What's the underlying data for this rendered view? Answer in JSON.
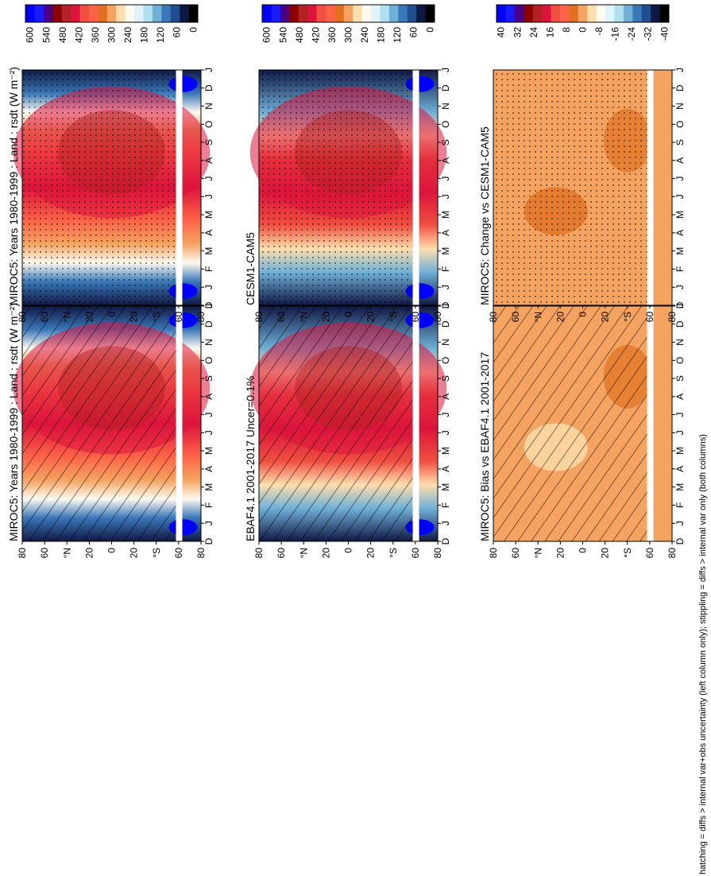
{
  "footnote": "hatching = diffs > internal var+obs uncertainty (left column only); stippling = diffs > internal var only (both columns)",
  "x_tick_labels": [
    "J",
    "F",
    "M",
    "A",
    "M",
    "J",
    "J",
    "A",
    "S",
    "O",
    "N",
    "D",
    "J"
  ],
  "x_tick_labels_left": [
    "D",
    "J",
    "F",
    "M",
    "A",
    "M",
    "J",
    "J",
    "A",
    "S",
    "O",
    "N",
    "D",
    "J"
  ],
  "lat_tick_labels": [
    "80",
    "60",
    "°N",
    "20",
    "0",
    "20",
    "°S",
    "60",
    "80"
  ],
  "colorbars": {
    "absolute": {
      "labels": [
        "600",
        "540",
        "480",
        "420",
        "360",
        "300",
        "240",
        "180",
        "120",
        "60",
        "0"
      ],
      "colors": [
        "#0000ff",
        "#1a1aff",
        "#4b0082",
        "#8b0000",
        "#b22222",
        "#dc143c",
        "#f05040",
        "#ff6347",
        "#e07020",
        "#f4a460",
        "#ffdead",
        "#fffaf0",
        "#e0f4ff",
        "#b0e0f0",
        "#6fb0d8",
        "#3a78b8",
        "#1f4f8f",
        "#101844",
        "#000000"
      ]
    },
    "difference": {
      "labels": [
        "40",
        "32",
        "24",
        "16",
        "8",
        "0",
        "-8",
        "-16",
        "-24",
        "-32",
        "-40"
      ],
      "colors": [
        "#0000ff",
        "#1a1aff",
        "#4b0082",
        "#8b0000",
        "#b22222",
        "#dc143c",
        "#f05040",
        "#ff6347",
        "#e07020",
        "#f4a460",
        "#ffdead",
        "#fffaf0",
        "#e0f4ff",
        "#b0e0f0",
        "#6fb0d8",
        "#3a78b8",
        "#1f4f8f",
        "#101844",
        "#000000"
      ]
    }
  },
  "chart_data": [
    {
      "type": "heatmap",
      "title": "MIROC5: Years 1980-1999 : Land : rsdt (W m⁻²)",
      "field": "absolute",
      "overlay": "hatching",
      "x": [
        "J",
        "F",
        "M",
        "A",
        "M",
        "J",
        "J",
        "A",
        "S",
        "O",
        "N",
        "D"
      ],
      "y": [
        "80N",
        "60N",
        "20N",
        "0",
        "20S",
        "60S",
        "80S"
      ]
    },
    {
      "type": "heatmap",
      "title": "EBAF4.1 2001-2017 Uncer=0.1%",
      "field": "absolute",
      "overlay": "hatching",
      "x": [
        "J",
        "F",
        "M",
        "A",
        "M",
        "J",
        "J",
        "A",
        "S",
        "O",
        "N",
        "D"
      ],
      "y": [
        "80N",
        "60N",
        "20N",
        "0",
        "20S",
        "60S",
        "80S"
      ]
    },
    {
      "type": "heatmap",
      "title": "MIROC5: Bias vs EBAF4.1 2001-2017",
      "field": "difference",
      "overlay": "hatching",
      "x": [
        "J",
        "F",
        "M",
        "A",
        "M",
        "J",
        "J",
        "A",
        "S",
        "O",
        "N",
        "D"
      ],
      "y": [
        "80N",
        "60N",
        "20N",
        "0",
        "20S",
        "60S",
        "80S"
      ]
    },
    {
      "type": "heatmap",
      "title": "MIROC5: Years 1980-1999 : Land : rsdt (W m⁻²)",
      "field": "absolute",
      "overlay": "stippling",
      "x": [
        "J",
        "F",
        "M",
        "A",
        "M",
        "J",
        "J",
        "A",
        "S",
        "O",
        "N",
        "D"
      ],
      "y": [
        "80N",
        "60N",
        "20N",
        "0",
        "20S",
        "60S",
        "80S"
      ]
    },
    {
      "type": "heatmap",
      "title": "CESM1-CAM5",
      "field": "absolute",
      "overlay": "stippling",
      "x": [
        "J",
        "F",
        "M",
        "A",
        "M",
        "J",
        "J",
        "A",
        "S",
        "O",
        "N",
        "D"
      ],
      "y": [
        "80N",
        "60N",
        "20N",
        "0",
        "20S",
        "60S",
        "80S"
      ]
    },
    {
      "type": "heatmap",
      "title": "MIROC5: Change vs CESM1-CAM5",
      "field": "difference",
      "overlay": "stippling",
      "x": [
        "J",
        "F",
        "M",
        "A",
        "M",
        "J",
        "J",
        "A",
        "S",
        "O",
        "N",
        "D"
      ],
      "y": [
        "80N",
        "60N",
        "20N",
        "0",
        "20S",
        "60S",
        "80S"
      ]
    }
  ]
}
